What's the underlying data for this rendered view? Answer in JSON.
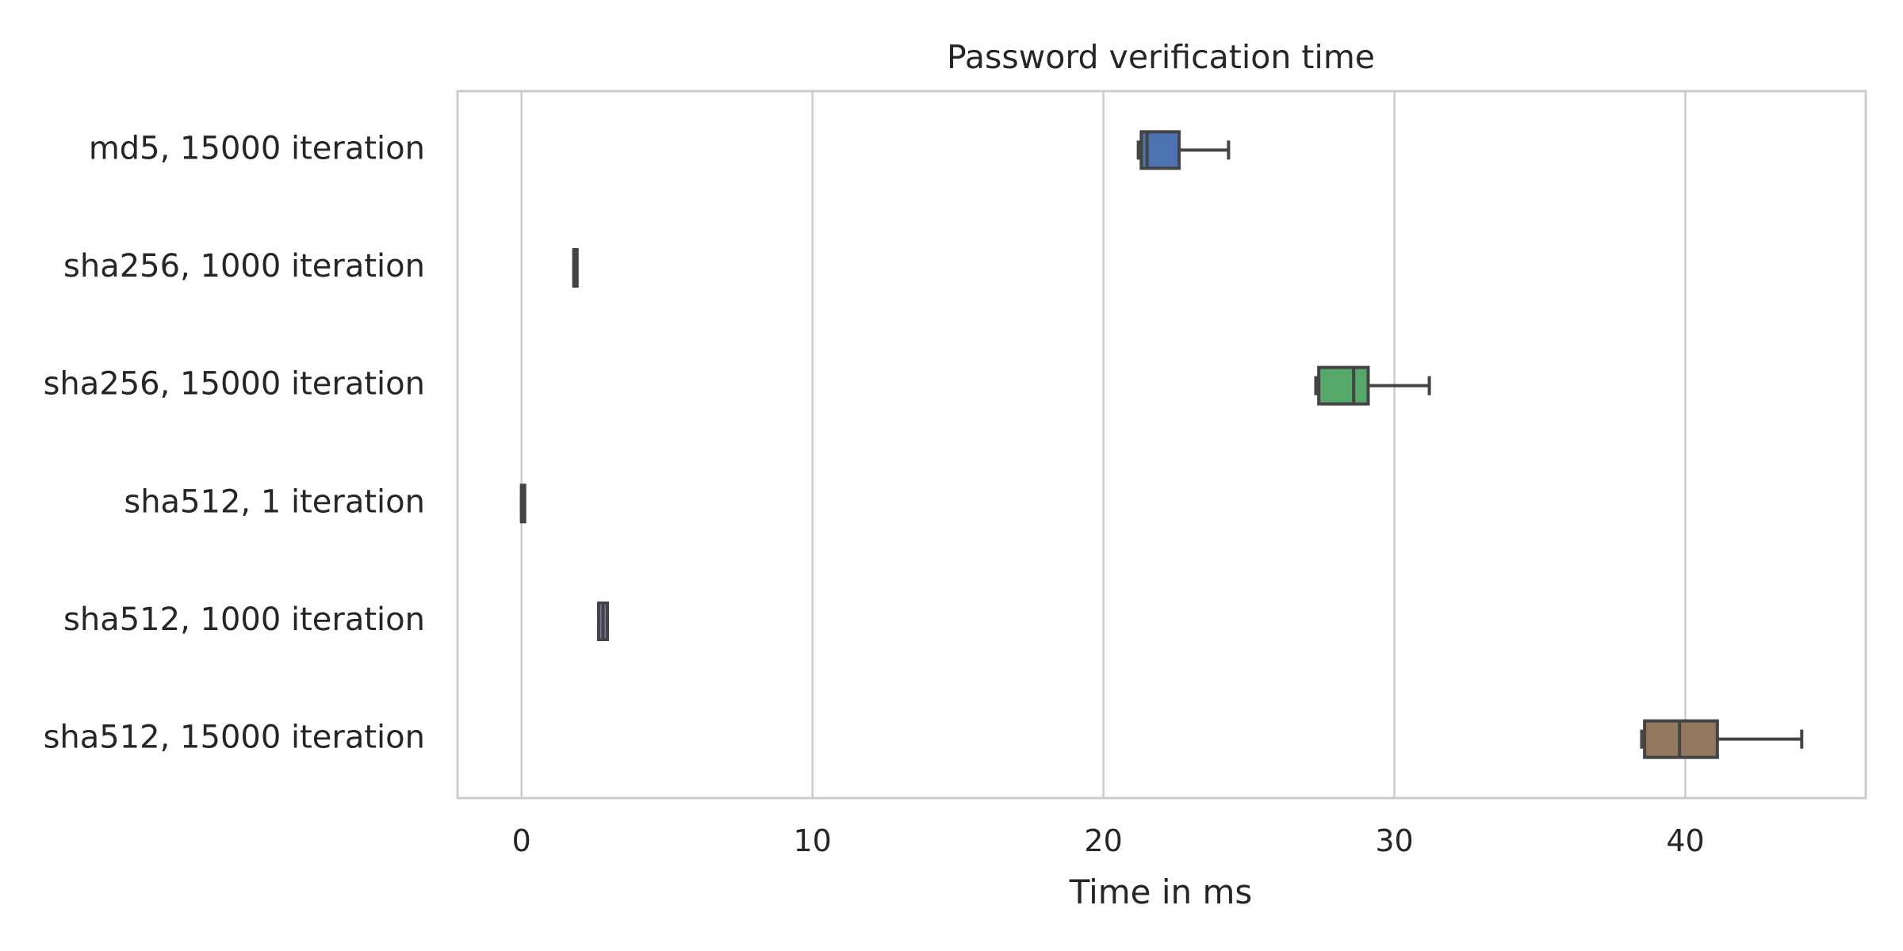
{
  "chart_data": {
    "type": "box",
    "orientation": "horizontal",
    "title": "Password verification time",
    "xlabel": "Time in ms",
    "ylabel": "",
    "xlim": [
      -2.2,
      46.2
    ],
    "xticks": [
      0,
      10,
      20,
      30,
      40
    ],
    "grid": "vertical",
    "legend": "none",
    "categories": [
      "md5, 15000 iteration",
      "sha256, 1000 iteration",
      "sha256, 15000 iteration",
      "sha512, 1 iteration",
      "sha512, 1000 iteration",
      "sha512, 15000 iteration"
    ],
    "boxes": [
      {
        "category": "md5, 15000 iteration",
        "whisker_low": 21.2,
        "q1": 21.3,
        "median": 21.5,
        "q3": 22.6,
        "whisker_high": 24.3,
        "color": "#4c72b0"
      },
      {
        "category": "sha256, 1000 iteration",
        "whisker_low": 1.8,
        "q1": 1.8,
        "median": 1.8,
        "q3": 1.9,
        "whisker_high": 1.9,
        "color": "#dd8452"
      },
      {
        "category": "sha256, 15000 iteration",
        "whisker_low": 27.3,
        "q1": 27.4,
        "median": 28.6,
        "q3": 29.1,
        "whisker_high": 31.2,
        "color": "#55a868"
      },
      {
        "category": "sha512, 1 iteration",
        "whisker_low": 0.0,
        "q1": 0.0,
        "median": 0.0,
        "q3": 0.05,
        "whisker_high": 0.05,
        "color": "#c44e52"
      },
      {
        "category": "sha512, 1000 iteration",
        "whisker_low": 2.65,
        "q1": 2.65,
        "median": 2.8,
        "q3": 2.95,
        "whisker_high": 2.95,
        "color": "#8172b3"
      },
      {
        "category": "sha512, 15000 iteration",
        "whisker_low": 38.5,
        "q1": 38.6,
        "median": 39.8,
        "q3": 41.1,
        "whisker_high": 44.0,
        "color": "#937860"
      }
    ],
    "axes_color": "#cccccc",
    "line_color": "#444444"
  }
}
